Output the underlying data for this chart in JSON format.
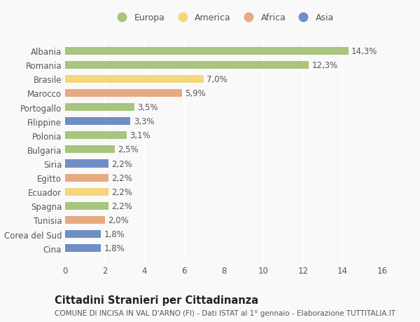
{
  "countries": [
    "Albania",
    "Romania",
    "Brasile",
    "Marocco",
    "Portogallo",
    "Filippine",
    "Polonia",
    "Bulgaria",
    "Siria",
    "Egitto",
    "Ecuador",
    "Spagna",
    "Tunisia",
    "Corea del Sud",
    "Cina"
  ],
  "values": [
    14.3,
    12.3,
    7.0,
    5.9,
    3.5,
    3.3,
    3.1,
    2.5,
    2.2,
    2.2,
    2.2,
    2.2,
    2.0,
    1.8,
    1.8
  ],
  "labels": [
    "14,3%",
    "12,3%",
    "7,0%",
    "5,9%",
    "3,5%",
    "3,3%",
    "3,1%",
    "2,5%",
    "2,2%",
    "2,2%",
    "2,2%",
    "2,2%",
    "2,0%",
    "1,8%",
    "1,8%"
  ],
  "continents": [
    "Europa",
    "Europa",
    "America",
    "Africa",
    "Europa",
    "Asia",
    "Europa",
    "Europa",
    "Asia",
    "Africa",
    "America",
    "Europa",
    "Africa",
    "Asia",
    "Asia"
  ],
  "continent_colors": {
    "Europa": "#a8c47e",
    "America": "#f5d67a",
    "Africa": "#e8aa80",
    "Asia": "#6e8ec4"
  },
  "legend_order": [
    "Europa",
    "America",
    "Africa",
    "Asia"
  ],
  "title": "Cittadini Stranieri per Cittadinanza",
  "subtitle": "COMUNE DI INCISA IN VAL D'ARNO (FI) - Dati ISTAT al 1° gennaio - Elaborazione TUTTITALIA.IT",
  "xlim": [
    0,
    16
  ],
  "xticks": [
    0,
    2,
    4,
    6,
    8,
    10,
    12,
    14,
    16
  ],
  "background_color": "#f9f9f9",
  "grid_color": "#ffffff",
  "bar_height": 0.55,
  "label_fontsize": 8.5,
  "tick_fontsize": 8.5,
  "title_fontsize": 10.5,
  "subtitle_fontsize": 7.5
}
